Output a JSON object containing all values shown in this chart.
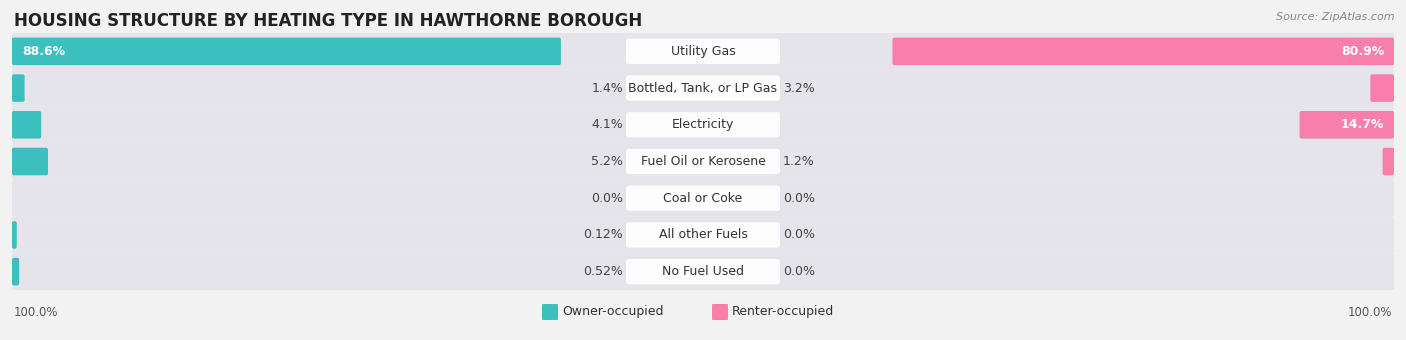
{
  "title": "HOUSING STRUCTURE BY HEATING TYPE IN HAWTHORNE BOROUGH",
  "source": "Source: ZipAtlas.com",
  "categories": [
    "Utility Gas",
    "Bottled, Tank, or LP Gas",
    "Electricity",
    "Fuel Oil or Kerosene",
    "Coal or Coke",
    "All other Fuels",
    "No Fuel Used"
  ],
  "owner_values": [
    88.6,
    1.4,
    4.1,
    5.2,
    0.0,
    0.12,
    0.52
  ],
  "renter_values": [
    80.9,
    3.2,
    14.7,
    1.2,
    0.0,
    0.0,
    0.0
  ],
  "owner_color": "#3bbfbf",
  "renter_color": "#f77faa",
  "background_color": "#f2f2f2",
  "bar_background": "#e4e4ea",
  "owner_label": "Owner-occupied",
  "renter_label": "Renter-occupied",
  "axis_label_left": "100.0%",
  "axis_label_right": "100.0%",
  "title_fontsize": 12,
  "source_fontsize": 8,
  "value_fontsize": 9,
  "category_fontsize": 9,
  "legend_fontsize": 9,
  "axis_fontsize": 8.5
}
